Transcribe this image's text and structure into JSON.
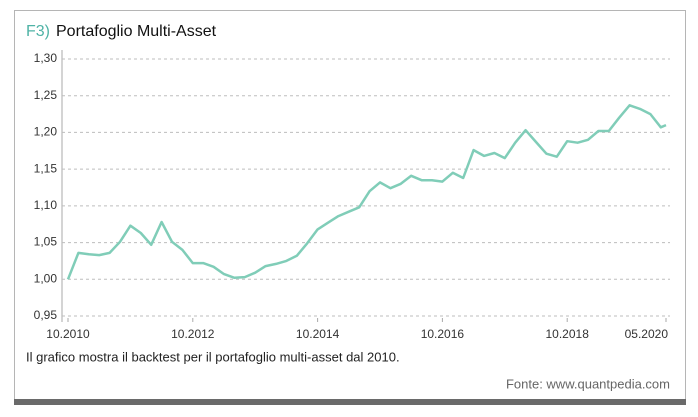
{
  "chart_data": {
    "type": "line",
    "figure_label": "F3)",
    "title": "Portafoglio Multi-Asset",
    "caption": "Il grafico mostra il backtest per il portafoglio multi-asset dal 2010.",
    "source": "Fonte: www.quantpedia.com",
    "x": [
      "2010-10",
      "2010-12",
      "2011-02",
      "2011-04",
      "2011-06",
      "2011-08",
      "2011-10",
      "2011-12",
      "2012-02",
      "2012-04",
      "2012-06",
      "2012-08",
      "2012-10",
      "2012-12",
      "2013-02",
      "2013-04",
      "2013-06",
      "2013-08",
      "2013-10",
      "2013-12",
      "2014-02",
      "2014-04",
      "2014-06",
      "2014-08",
      "2014-10",
      "2014-12",
      "2015-02",
      "2015-04",
      "2015-06",
      "2015-08",
      "2015-10",
      "2015-12",
      "2016-02",
      "2016-04",
      "2016-06",
      "2016-08",
      "2016-10",
      "2016-12",
      "2017-02",
      "2017-04",
      "2017-06",
      "2017-08",
      "2017-10",
      "2017-12",
      "2018-02",
      "2018-04",
      "2018-06",
      "2018-08",
      "2018-10",
      "2018-12",
      "2019-02",
      "2019-04",
      "2019-06",
      "2019-08",
      "2019-10",
      "2019-12",
      "2020-02",
      "2020-04",
      "2020-05"
    ],
    "series": [
      {
        "name": "Portafoglio Multi-Asset",
        "color": "#80cdb8",
        "values": [
          1.0,
          1.036,
          1.034,
          1.033,
          1.036,
          1.051,
          1.073,
          1.063,
          1.047,
          1.078,
          1.051,
          1.04,
          1.022,
          1.022,
          1.017,
          1.007,
          1.002,
          1.003,
          1.009,
          1.018,
          1.021,
          1.025,
          1.032,
          1.049,
          1.068,
          1.077,
          1.086,
          1.092,
          1.098,
          1.12,
          1.132,
          1.124,
          1.13,
          1.141,
          1.135,
          1.135,
          1.133,
          1.145,
          1.138,
          1.176,
          1.168,
          1.172,
          1.165,
          1.186,
          1.203,
          1.187,
          1.171,
          1.167,
          1.188,
          1.186,
          1.19,
          1.202,
          1.202,
          1.22,
          1.237,
          1.232,
          1.225,
          1.207,
          1.21
        ]
      }
    ],
    "xlim": [
      "2010-10",
      "2020-05"
    ],
    "xticks": [
      {
        "value": "2010-10",
        "label": "10.2010"
      },
      {
        "value": "2012-10",
        "label": "10.2012"
      },
      {
        "value": "2014-10",
        "label": "10.2014"
      },
      {
        "value": "2016-10",
        "label": "10.2016"
      },
      {
        "value": "2018-10",
        "label": "10.2018"
      },
      {
        "value": "2020-05",
        "label": "05.2020"
      }
    ],
    "ylim": [
      0.95,
      1.3
    ],
    "yticks": [
      {
        "value": 0.95,
        "label": "0,95"
      },
      {
        "value": 1.0,
        "label": "1,00"
      },
      {
        "value": 1.05,
        "label": "1,05"
      },
      {
        "value": 1.1,
        "label": "1,10"
      },
      {
        "value": 1.15,
        "label": "1,15"
      },
      {
        "value": 1.2,
        "label": "1,20"
      },
      {
        "value": 1.25,
        "label": "1,25"
      },
      {
        "value": 1.3,
        "label": "1,30"
      }
    ],
    "grid": true
  }
}
